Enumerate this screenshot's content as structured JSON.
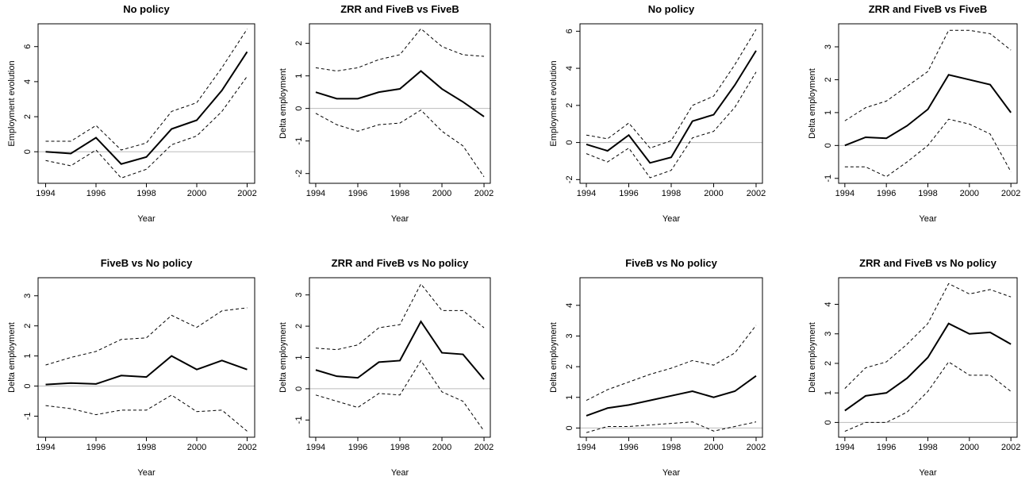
{
  "chart_data": [
    {
      "type": "line",
      "title": "No policy",
      "x_label": "Year",
      "y_label": "Employment evolution",
      "x": [
        1994,
        1995,
        1996,
        1997,
        1998,
        1999,
        2000,
        2001,
        2002
      ],
      "xlim": [
        1993.7,
        2002.3
      ],
      "xticks": [
        1994,
        1996,
        1998,
        2000,
        2002
      ],
      "ylim": [
        -1.8,
        7.3
      ],
      "yticks": [
        0,
        2,
        4,
        6
      ],
      "hline": 0,
      "series": [
        {
          "color": "#000000",
          "dash": "solid",
          "values": [
            0,
            -0.1,
            0.8,
            -0.7,
            -0.3,
            1.3,
            1.8,
            3.5,
            5.7
          ]
        },
        {
          "color": "#000000",
          "dash": "dashed",
          "values": [
            0.6,
            0.6,
            1.5,
            0.1,
            0.5,
            2.3,
            2.8,
            4.8,
            7.0
          ]
        },
        {
          "color": "#000000",
          "dash": "dashed",
          "values": [
            -0.5,
            -0.8,
            0.1,
            -1.5,
            -1.0,
            0.4,
            0.9,
            2.3,
            4.3
          ]
        }
      ]
    },
    {
      "type": "line",
      "title": "ZRR and FiveB vs FiveB",
      "x_label": "Year",
      "y_label": "Delta employment",
      "x": [
        1994,
        1995,
        1996,
        1997,
        1998,
        1999,
        2000,
        2001,
        2002
      ],
      "xlim": [
        1993.7,
        2002.3
      ],
      "xticks": [
        1994,
        1996,
        1998,
        2000,
        2002
      ],
      "ylim": [
        -2.3,
        2.6
      ],
      "yticks": [
        -2,
        -1,
        0,
        1,
        2
      ],
      "hline": 0,
      "series": [
        {
          "color": "#000000",
          "dash": "solid",
          "values": [
            0.5,
            0.3,
            0.3,
            0.5,
            0.6,
            1.15,
            0.6,
            0.2,
            -0.25
          ]
        },
        {
          "color": "#000000",
          "dash": "dashed",
          "values": [
            1.25,
            1.15,
            1.25,
            1.5,
            1.65,
            2.45,
            1.9,
            1.65,
            1.6
          ]
        },
        {
          "color": "#000000",
          "dash": "dashed",
          "values": [
            -0.15,
            -0.5,
            -0.7,
            -0.5,
            -0.45,
            -0.05,
            -0.7,
            -1.15,
            -2.1
          ]
        }
      ]
    },
    {
      "type": "line",
      "title": "No policy",
      "x_label": "Year",
      "y_label": "Employment evolution",
      "x": [
        1994,
        1995,
        1996,
        1997,
        1998,
        1999,
        2000,
        2001,
        2002
      ],
      "xlim": [
        1993.7,
        2002.3
      ],
      "xticks": [
        1994,
        1996,
        1998,
        2000,
        2002
      ],
      "ylim": [
        -2.2,
        6.4
      ],
      "yticks": [
        -2,
        0,
        2,
        4,
        6
      ],
      "hline": 0,
      "series": [
        {
          "color": "#000000",
          "dash": "solid",
          "values": [
            -0.1,
            -0.45,
            0.4,
            -1.1,
            -0.8,
            1.15,
            1.5,
            3.1,
            4.95
          ]
        },
        {
          "color": "#000000",
          "dash": "dashed",
          "values": [
            0.4,
            0.2,
            1.05,
            -0.3,
            0.1,
            2.0,
            2.5,
            4.2,
            6.1
          ]
        },
        {
          "color": "#000000",
          "dash": "dashed",
          "values": [
            -0.6,
            -1.05,
            -0.3,
            -1.9,
            -1.5,
            0.25,
            0.6,
            1.9,
            3.8
          ]
        }
      ]
    },
    {
      "type": "line",
      "title": "ZRR and FiveB vs FiveB",
      "x_label": "Year",
      "y_label": "Delta employment",
      "x": [
        1994,
        1995,
        1996,
        1997,
        1998,
        1999,
        2000,
        2001,
        2002
      ],
      "xlim": [
        1993.7,
        2002.3
      ],
      "xticks": [
        1994,
        1996,
        1998,
        2000,
        2002
      ],
      "ylim": [
        -1.15,
        3.7
      ],
      "yticks": [
        -1,
        0,
        1,
        2,
        3
      ],
      "hline": 0,
      "series": [
        {
          "color": "#000000",
          "dash": "solid",
          "values": [
            0.0,
            0.25,
            0.22,
            0.6,
            1.1,
            2.15,
            2.0,
            1.85,
            1.0
          ]
        },
        {
          "color": "#000000",
          "dash": "dashed",
          "values": [
            0.75,
            1.15,
            1.35,
            1.8,
            2.25,
            3.5,
            3.5,
            3.4,
            2.9
          ]
        },
        {
          "color": "#000000",
          "dash": "dashed",
          "values": [
            -0.65,
            -0.65,
            -0.95,
            -0.5,
            0.0,
            0.8,
            0.65,
            0.35,
            -0.8
          ]
        }
      ]
    },
    {
      "type": "line",
      "title": "FiveB vs No policy",
      "x_label": "Year",
      "y_label": "Delta employment",
      "x": [
        1994,
        1995,
        1996,
        1997,
        1998,
        1999,
        2000,
        2001,
        2002
      ],
      "xlim": [
        1993.7,
        2002.3
      ],
      "xticks": [
        1994,
        1996,
        1998,
        2000,
        2002
      ],
      "ylim": [
        -1.7,
        3.6
      ],
      "yticks": [
        -1,
        0,
        1,
        2,
        3
      ],
      "hline": 0,
      "series": [
        {
          "color": "#000000",
          "dash": "solid",
          "values": [
            0.05,
            0.1,
            0.07,
            0.35,
            0.3,
            1.0,
            0.55,
            0.85,
            0.55
          ]
        },
        {
          "color": "#000000",
          "dash": "dashed",
          "values": [
            0.7,
            0.95,
            1.15,
            1.55,
            1.6,
            2.35,
            1.95,
            2.5,
            2.6
          ]
        },
        {
          "color": "#000000",
          "dash": "dashed",
          "values": [
            -0.65,
            -0.75,
            -0.95,
            -0.8,
            -0.8,
            -0.3,
            -0.85,
            -0.8,
            -1.5
          ]
        }
      ]
    },
    {
      "type": "line",
      "title": "ZRR and FiveB vs No policy",
      "x_label": "Year",
      "y_label": "Delta employment",
      "x": [
        1994,
        1995,
        1996,
        1997,
        1998,
        1999,
        2000,
        2001,
        2002
      ],
      "xlim": [
        1993.7,
        2002.3
      ],
      "xticks": [
        1994,
        1996,
        1998,
        2000,
        2002
      ],
      "ylim": [
        -1.55,
        3.55
      ],
      "yticks": [
        -1,
        0,
        1,
        2,
        3
      ],
      "hline": 0,
      "series": [
        {
          "color": "#000000",
          "dash": "solid",
          "values": [
            0.6,
            0.4,
            0.35,
            0.85,
            0.9,
            2.15,
            1.15,
            1.1,
            0.3
          ]
        },
        {
          "color": "#000000",
          "dash": "dashed",
          "values": [
            1.3,
            1.25,
            1.4,
            1.95,
            2.05,
            3.35,
            2.5,
            2.5,
            1.95
          ]
        },
        {
          "color": "#000000",
          "dash": "dashed",
          "values": [
            -0.2,
            -0.4,
            -0.6,
            -0.15,
            -0.2,
            0.9,
            -0.1,
            -0.4,
            -1.35
          ]
        }
      ]
    },
    {
      "type": "line",
      "title": "FiveB vs No policy",
      "x_label": "Year",
      "y_label": "Delta employment",
      "x": [
        1994,
        1995,
        1996,
        1997,
        1998,
        1999,
        2000,
        2001,
        2002
      ],
      "xlim": [
        1993.7,
        2002.3
      ],
      "xticks": [
        1994,
        1996,
        1998,
        2000,
        2002
      ],
      "ylim": [
        -0.3,
        4.9
      ],
      "yticks": [
        0,
        1,
        2,
        3,
        4
      ],
      "hline": 0,
      "series": [
        {
          "color": "#000000",
          "dash": "solid",
          "values": [
            0.4,
            0.65,
            0.75,
            0.9,
            1.05,
            1.2,
            1.0,
            1.2,
            1.7
          ]
        },
        {
          "color": "#000000",
          "dash": "dashed",
          "values": [
            0.9,
            1.25,
            1.5,
            1.75,
            1.95,
            2.2,
            2.05,
            2.45,
            3.35
          ]
        },
        {
          "color": "#000000",
          "dash": "dashed",
          "values": [
            -0.15,
            0.05,
            0.05,
            0.1,
            0.15,
            0.2,
            -0.1,
            0.05,
            0.2
          ]
        }
      ]
    },
    {
      "type": "line",
      "title": "ZRR and FiveB vs No policy",
      "x_label": "Year",
      "y_label": "Delta employment",
      "x": [
        1994,
        1995,
        1996,
        1997,
        1998,
        1999,
        2000,
        2001,
        2002
      ],
      "xlim": [
        1993.7,
        2002.3
      ],
      "xticks": [
        1994,
        1996,
        1998,
        2000,
        2002
      ],
      "ylim": [
        -0.5,
        4.9
      ],
      "yticks": [
        0,
        1,
        2,
        3,
        4
      ],
      "hline": 0,
      "series": [
        {
          "color": "#000000",
          "dash": "solid",
          "values": [
            0.4,
            0.9,
            1.0,
            1.5,
            2.2,
            3.35,
            3.0,
            3.05,
            2.65
          ]
        },
        {
          "color": "#000000",
          "dash": "dashed",
          "values": [
            1.15,
            1.85,
            2.05,
            2.65,
            3.35,
            4.7,
            4.35,
            4.5,
            4.25
          ]
        },
        {
          "color": "#000000",
          "dash": "dashed",
          "values": [
            -0.3,
            0.0,
            0.0,
            0.35,
            1.05,
            2.05,
            1.6,
            1.6,
            1.05
          ]
        }
      ]
    }
  ]
}
